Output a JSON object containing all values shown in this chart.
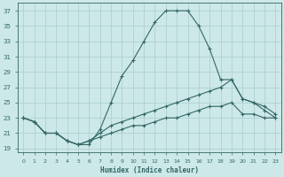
{
  "xlabel": "Humidex (Indice chaleur)",
  "background_color": "#cce8e8",
  "grid_color": "#aacccc",
  "line_color": "#336666",
  "ylim": [
    18.5,
    38
  ],
  "xlim": [
    -0.5,
    23.5
  ],
  "yticks": [
    19,
    21,
    23,
    25,
    27,
    29,
    31,
    33,
    35,
    37
  ],
  "xticks": [
    0,
    1,
    2,
    3,
    4,
    5,
    6,
    7,
    8,
    9,
    10,
    11,
    12,
    13,
    14,
    15,
    16,
    17,
    18,
    19,
    20,
    21,
    22,
    23
  ],
  "series": [
    {
      "x": [
        0,
        1,
        2,
        3,
        4,
        5,
        6,
        7,
        8,
        9,
        10,
        11,
        12,
        13,
        14,
        15,
        16,
        17,
        18,
        19,
        20,
        21,
        22,
        23
      ],
      "y": [
        23,
        22.5,
        21,
        21,
        20,
        19.5,
        19.5,
        21.5,
        25,
        28.5,
        30.5,
        33,
        35.5,
        37,
        37,
        37,
        35,
        32,
        28,
        28,
        25.5,
        25,
        24,
        23
      ]
    },
    {
      "x": [
        0,
        1,
        2,
        3,
        4,
        5,
        6,
        7,
        8,
        9,
        10,
        11,
        12,
        13,
        14,
        15,
        16,
        17,
        18,
        19,
        20,
        21,
        22,
        23
      ],
      "y": [
        23,
        22.5,
        21,
        21,
        20,
        19.5,
        20,
        21,
        22,
        22.5,
        23,
        23.5,
        24,
        24.5,
        25,
        25.5,
        26,
        26.5,
        27,
        28,
        25.5,
        25,
        24.5,
        23.5
      ]
    },
    {
      "x": [
        0,
        1,
        2,
        3,
        4,
        5,
        6,
        7,
        8,
        9,
        10,
        11,
        12,
        13,
        14,
        15,
        16,
        17,
        18,
        19,
        20,
        21,
        22,
        23
      ],
      "y": [
        23,
        22.5,
        21,
        21,
        20,
        19.5,
        20,
        20.5,
        21,
        21.5,
        22,
        22,
        22.5,
        23,
        23,
        23.5,
        24,
        24.5,
        24.5,
        25,
        23.5,
        23.5,
        23,
        23
      ]
    }
  ]
}
